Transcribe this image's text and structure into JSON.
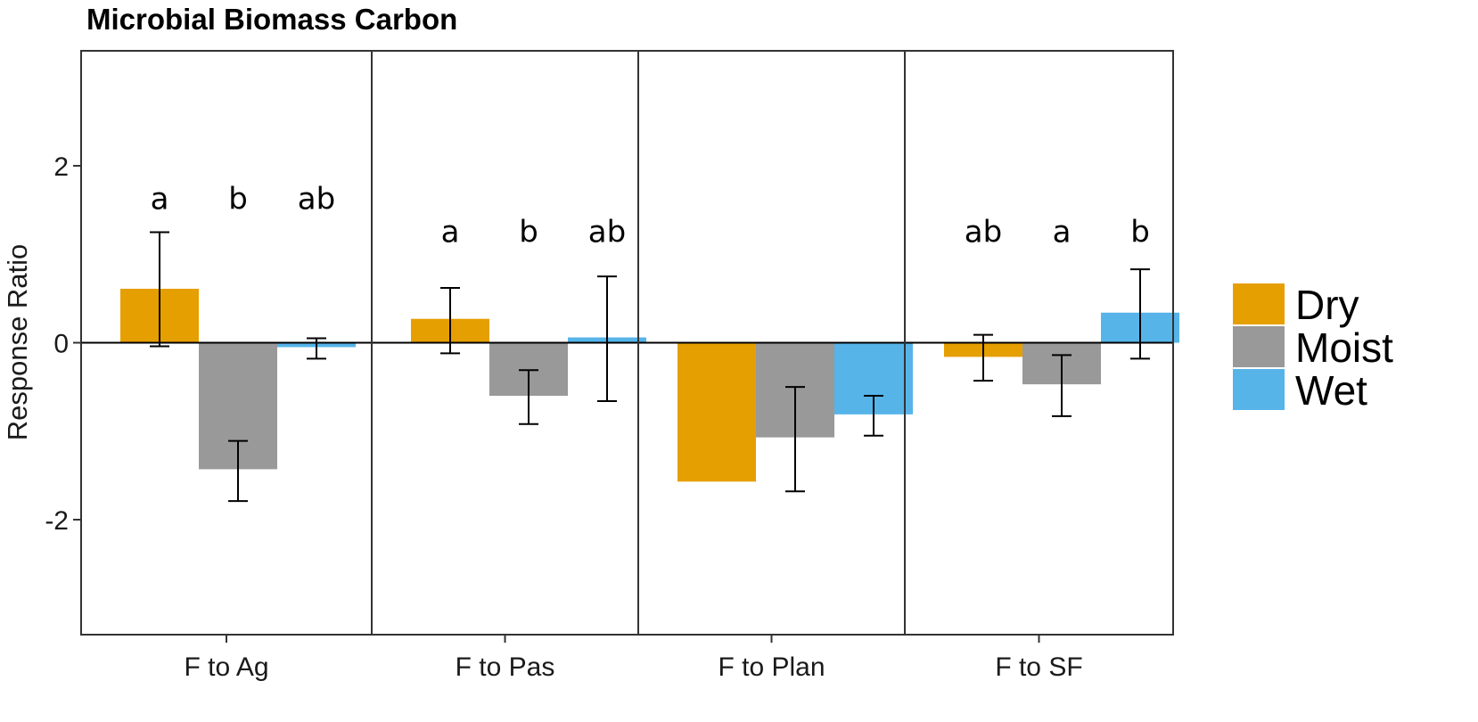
{
  "chart_data": {
    "type": "bar",
    "title": "Microbial Biomass Carbon",
    "xlabel": "",
    "ylabel": "Response Ratio",
    "ylim": [
      -3.3,
      3.3
    ],
    "yticks": [
      {
        "value": 2,
        "label": "2"
      },
      {
        "value": 0,
        "label": "0"
      },
      {
        "value": -2,
        "label": "-2"
      }
    ],
    "grid": false,
    "legend_position": "right",
    "categories": [
      "F to Ag",
      "F to Pas",
      "F to Plan",
      "F to SF"
    ],
    "series": [
      {
        "name": "Dry",
        "color": "#E69F00",
        "values": [
          0.61,
          0.27,
          -1.57,
          -0.16
        ],
        "error_low": [
          -0.04,
          -0.12,
          null,
          -0.43
        ],
        "error_high": [
          1.25,
          0.62,
          null,
          0.09
        ],
        "sig_labels": [
          "a",
          "a",
          "",
          "ab"
        ]
      },
      {
        "name": "Moist",
        "color": "#999999",
        "values": [
          -1.43,
          -0.6,
          -1.07,
          -0.47
        ],
        "error_low": [
          -1.79,
          -0.92,
          -1.68,
          -0.83
        ],
        "error_high": [
          -1.11,
          -0.31,
          -0.5,
          -0.14
        ],
        "sig_labels": [
          "b",
          "b",
          "",
          "a"
        ]
      },
      {
        "name": "Wet",
        "color": "#56B4E9",
        "values": [
          -0.05,
          0.06,
          -0.81,
          0.34
        ],
        "error_low": [
          -0.18,
          -0.66,
          -1.05,
          -0.18
        ],
        "error_high": [
          0.05,
          0.75,
          -0.6,
          0.83
        ],
        "sig_labels": [
          "ab",
          "ab",
          "",
          "b"
        ]
      }
    ],
    "sig_label_y": [
      1.63,
      1.26,
      null,
      1.26
    ]
  }
}
